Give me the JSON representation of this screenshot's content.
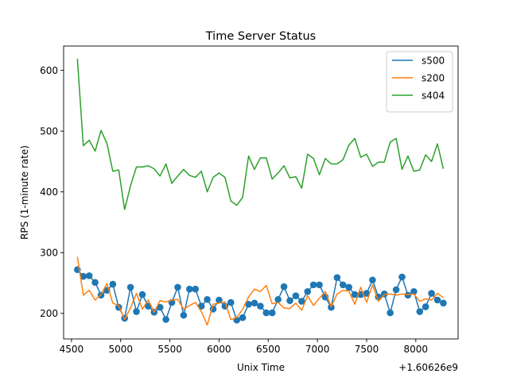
{
  "chart_data": {
    "type": "line",
    "title": "Time Server Status",
    "xlabel": "Unix Time",
    "ylabel": "RPS (1-minute rate)",
    "x_offset_label": "+1.60626e9",
    "xlim": [
      4420,
      8430
    ],
    "ylim": [
      158,
      640
    ],
    "xticks": [
      4500,
      5000,
      5500,
      6000,
      6500,
      7000,
      7500,
      8000
    ],
    "yticks": [
      200,
      300,
      400,
      500,
      600
    ],
    "grid": false,
    "legend_position": "top-right",
    "x": [
      4560,
      4620,
      4680,
      4740,
      4800,
      4860,
      4920,
      4980,
      5040,
      5100,
      5160,
      5220,
      5280,
      5340,
      5400,
      5460,
      5520,
      5580,
      5640,
      5700,
      5760,
      5820,
      5880,
      5940,
      6000,
      6060,
      6120,
      6180,
      6240,
      6300,
      6360,
      6420,
      6480,
      6540,
      6600,
      6660,
      6720,
      6780,
      6840,
      6900,
      6960,
      7020,
      7080,
      7140,
      7200,
      7260,
      7320,
      7380,
      7440,
      7500,
      7560,
      7620,
      7680,
      7740,
      7800,
      7860,
      7920,
      7980,
      8040,
      8100,
      8160,
      8220,
      8280
    ],
    "series": [
      {
        "name": "s500",
        "color": "#1f77b4",
        "markers": true,
        "values": [
          272,
          261,
          262,
          251,
          230,
          238,
          248,
          210,
          192,
          243,
          203,
          231,
          212,
          202,
          210,
          190,
          218,
          243,
          197,
          240,
          240,
          212,
          223,
          207,
          222,
          212,
          218,
          189,
          193,
          215,
          217,
          212,
          201,
          201,
          223,
          244,
          221,
          229,
          220,
          236,
          247,
          247,
          227,
          210,
          259,
          247,
          243,
          231,
          231,
          233,
          255,
          227,
          232,
          201,
          239,
          260,
          230,
          236,
          203,
          211,
          233,
          222,
          217
        ]
      },
      {
        "name": "s200",
        "color": "#ff7f0e",
        "markers": false,
        "values": [
          293,
          230,
          238,
          222,
          231,
          249,
          217,
          213,
          190,
          209,
          233,
          207,
          222,
          202,
          221,
          219,
          222,
          223,
          207,
          213,
          218,
          203,
          181,
          215,
          217,
          219,
          190,
          193,
          207,
          227,
          240,
          236,
          246,
          216,
          218,
          209,
          208,
          217,
          205,
          229,
          213,
          225,
          236,
          211,
          232,
          238,
          237,
          215,
          243,
          218,
          247,
          220,
          231,
          232,
          230,
          232,
          231,
          232,
          220,
          224,
          222,
          233,
          226
        ]
      },
      {
        "name": "s404",
        "color": "#2ca02c",
        "markers": false,
        "values": [
          619,
          476,
          485,
          467,
          501,
          480,
          434,
          436,
          371,
          410,
          441,
          441,
          443,
          438,
          426,
          446,
          414,
          426,
          437,
          427,
          424,
          434,
          400,
          424,
          431,
          424,
          385,
          378,
          391,
          459,
          437,
          456,
          456,
          421,
          431,
          443,
          423,
          425,
          406,
          462,
          455,
          428,
          455,
          446,
          446,
          453,
          477,
          488,
          457,
          462,
          442,
          449,
          449,
          482,
          488,
          437,
          459,
          434,
          436,
          461,
          450,
          479,
          438
        ]
      }
    ]
  }
}
